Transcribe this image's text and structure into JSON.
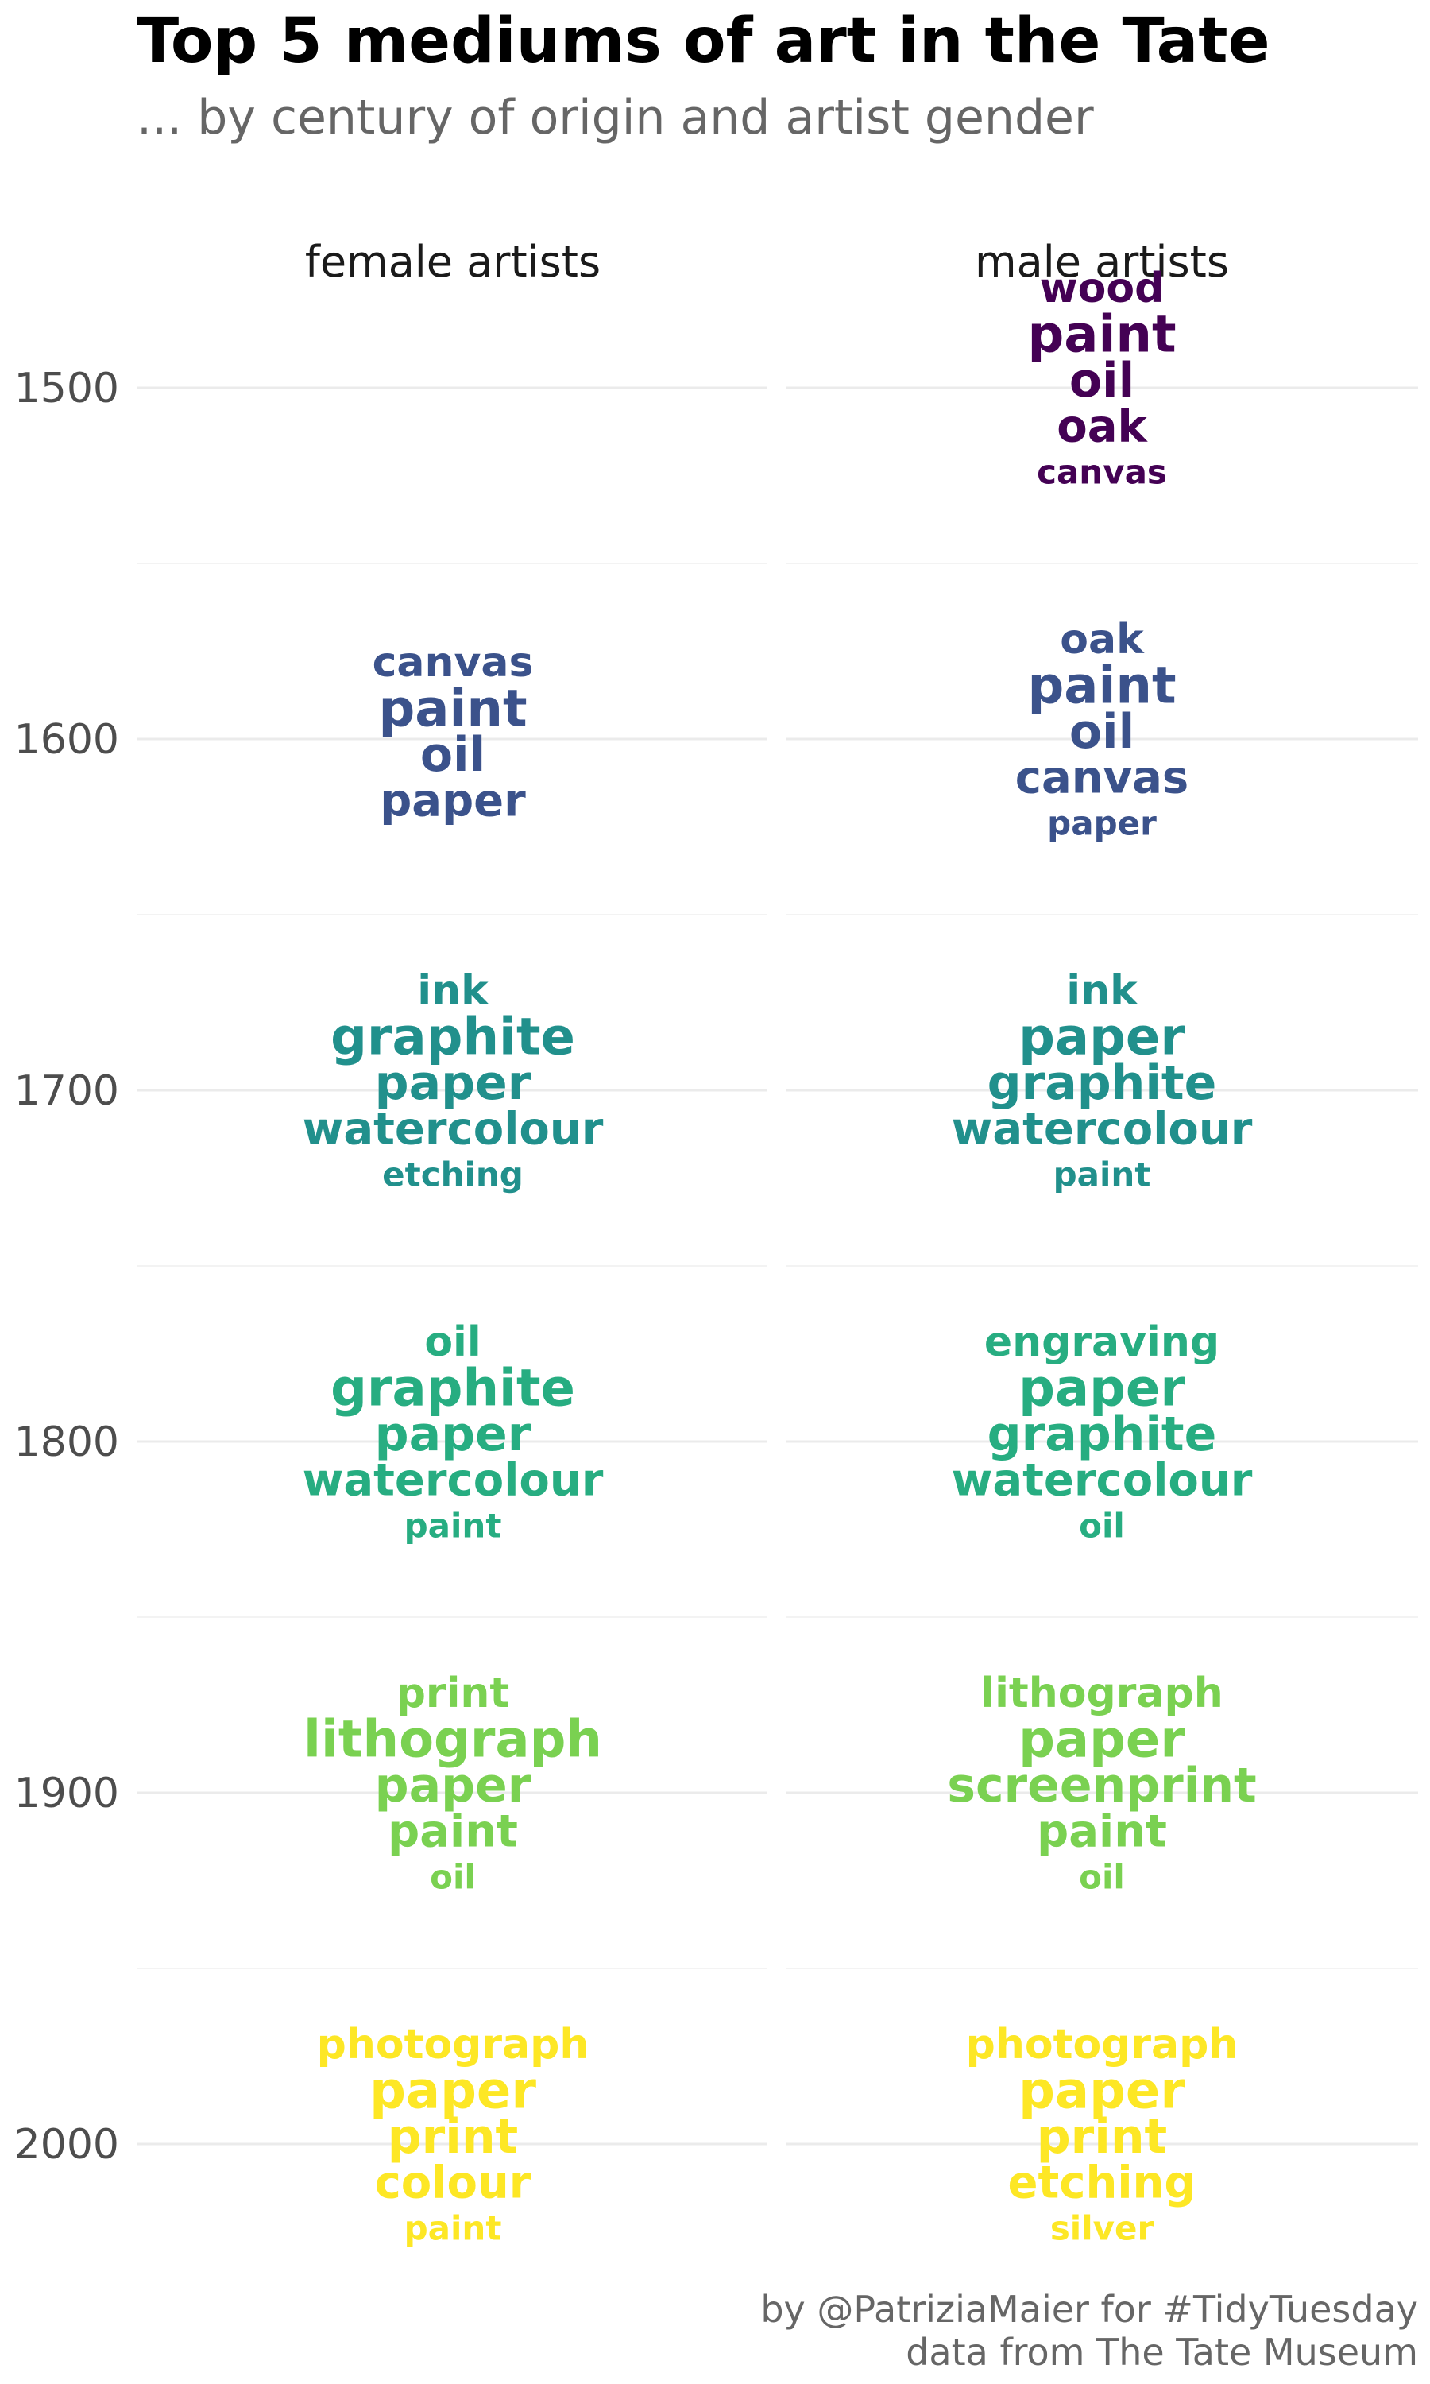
{
  "chart_data": {
    "type": "wordcloud",
    "title": "Top 5 mediums of art in the Tate",
    "subtitle": "... by century of origin and artist gender",
    "facets": [
      "female artists",
      "male artists"
    ],
    "y_ticks": [
      "1500",
      "1600",
      "1700",
      "1800",
      "1900",
      "2000"
    ],
    "caption": [
      "by @PatriziaMaier for #TidyTuesday",
      "data from The Tate Museum"
    ],
    "colors": {
      "1500": "#440154",
      "1600": "#3b528b",
      "1700": "#21908c",
      "1800": "#27ad81",
      "1900": "#7ad151",
      "2000": "#fde725"
    },
    "groups": [
      {
        "century": "1500",
        "facet": "male artists",
        "words": [
          {
            "text": "paint",
            "rank": 1
          },
          {
            "text": "oil",
            "rank": 2
          },
          {
            "text": "oak",
            "rank": 3
          },
          {
            "text": "wood",
            "rank": 4
          },
          {
            "text": "canvas",
            "rank": 5
          }
        ]
      },
      {
        "century": "1600",
        "facet": "female artists",
        "words": [
          {
            "text": "paint",
            "rank": 1
          },
          {
            "text": "oil",
            "rank": 2
          },
          {
            "text": "paper",
            "rank": 3
          },
          {
            "text": "canvas",
            "rank": 4
          }
        ]
      },
      {
        "century": "1600",
        "facet": "male artists",
        "words": [
          {
            "text": "paint",
            "rank": 1
          },
          {
            "text": "oil",
            "rank": 2
          },
          {
            "text": "canvas",
            "rank": 3
          },
          {
            "text": "oak",
            "rank": 4
          },
          {
            "text": "paper",
            "rank": 5
          }
        ]
      },
      {
        "century": "1700",
        "facet": "female artists",
        "words": [
          {
            "text": "graphite",
            "rank": 1
          },
          {
            "text": "paper",
            "rank": 2
          },
          {
            "text": "watercolour",
            "rank": 3
          },
          {
            "text": "ink",
            "rank": 4
          },
          {
            "text": "etching",
            "rank": 5
          }
        ]
      },
      {
        "century": "1700",
        "facet": "male artists",
        "words": [
          {
            "text": "paper",
            "rank": 1
          },
          {
            "text": "graphite",
            "rank": 2
          },
          {
            "text": "watercolour",
            "rank": 3
          },
          {
            "text": "ink",
            "rank": 4
          },
          {
            "text": "paint",
            "rank": 5
          }
        ]
      },
      {
        "century": "1800",
        "facet": "female artists",
        "words": [
          {
            "text": "graphite",
            "rank": 1
          },
          {
            "text": "paper",
            "rank": 2
          },
          {
            "text": "watercolour",
            "rank": 3
          },
          {
            "text": "oil",
            "rank": 4
          },
          {
            "text": "paint",
            "rank": 5
          }
        ]
      },
      {
        "century": "1800",
        "facet": "male artists",
        "words": [
          {
            "text": "paper",
            "rank": 1
          },
          {
            "text": "graphite",
            "rank": 2
          },
          {
            "text": "watercolour",
            "rank": 3
          },
          {
            "text": "engraving",
            "rank": 4
          },
          {
            "text": "oil",
            "rank": 5
          }
        ]
      },
      {
        "century": "1900",
        "facet": "female artists",
        "words": [
          {
            "text": "lithograph",
            "rank": 1
          },
          {
            "text": "paper",
            "rank": 2
          },
          {
            "text": "paint",
            "rank": 3
          },
          {
            "text": "print",
            "rank": 4
          },
          {
            "text": "oil",
            "rank": 5
          }
        ]
      },
      {
        "century": "1900",
        "facet": "male artists",
        "words": [
          {
            "text": "paper",
            "rank": 1
          },
          {
            "text": "screenprint",
            "rank": 2
          },
          {
            "text": "paint",
            "rank": 3
          },
          {
            "text": "lithograph",
            "rank": 4
          },
          {
            "text": "oil",
            "rank": 5
          }
        ]
      },
      {
        "century": "2000",
        "facet": "female artists",
        "words": [
          {
            "text": "paper",
            "rank": 1
          },
          {
            "text": "print",
            "rank": 2
          },
          {
            "text": "colour",
            "rank": 3
          },
          {
            "text": "photograph",
            "rank": 4
          },
          {
            "text": "paint",
            "rank": 5
          }
        ]
      },
      {
        "century": "2000",
        "facet": "male artists",
        "words": [
          {
            "text": "paper",
            "rank": 1
          },
          {
            "text": "print",
            "rank": 2
          },
          {
            "text": "etching",
            "rank": 3
          },
          {
            "text": "photograph",
            "rank": 4
          },
          {
            "text": "silver",
            "rank": 5
          }
        ]
      }
    ]
  }
}
